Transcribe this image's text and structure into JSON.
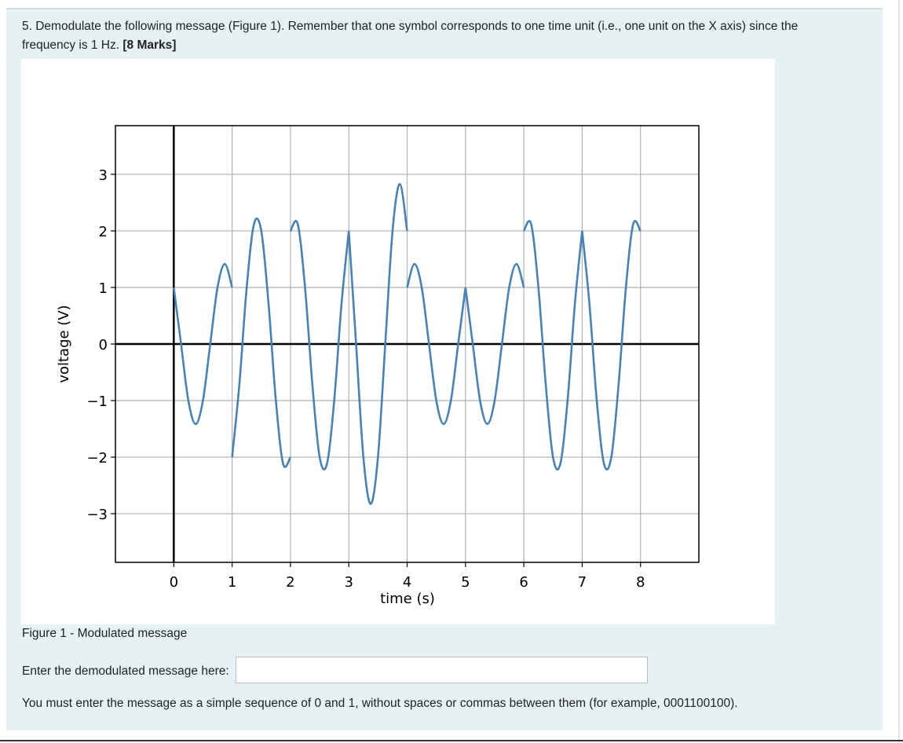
{
  "question": {
    "text": "5. Demodulate the following message (Figure 1). Remember that one symbol corresponds to one time unit (i.e., one unit on the X axis) since the frequency is 1 Hz.",
    "marks": "[8 Marks]"
  },
  "caption": "Figure 1 - Modulated message",
  "answer_label": "Enter the demodulated message here:",
  "note": "You must enter the message as a simple sequence of 0 and 1, without spaces or commas between them (for example, 0001100100).",
  "chart_data": {
    "type": "line",
    "x_label": "time (s)",
    "y_label": "voltage (V)",
    "xlim": [
      -1,
      9
    ],
    "ylim": [
      -3.86,
      3.86
    ],
    "xticks": [
      0,
      1,
      2,
      3,
      4,
      5,
      6,
      7,
      8
    ],
    "yticks": [
      {
        "value": -3,
        "label": "−3"
      },
      {
        "value": -2,
        "label": "−2"
      },
      {
        "value": -1,
        "label": "−1"
      },
      0,
      1,
      2,
      3
    ],
    "grid": true,
    "zero_lines": true,
    "x": [
      0,
      0.125,
      0.25,
      0.375,
      0.5,
      0.625,
      0.75,
      0.875,
      1,
      null,
      1,
      1.125,
      1.25,
      1.375,
      1.5,
      1.625,
      1.75,
      1.875,
      2,
      null,
      2,
      2.125,
      2.25,
      2.375,
      2.5,
      2.625,
      2.75,
      2.875,
      3,
      null,
      3,
      3.125,
      3.25,
      3.375,
      3.5,
      3.625,
      3.75,
      3.875,
      4,
      null,
      4,
      4.125,
      4.25,
      4.375,
      4.5,
      4.625,
      4.75,
      4.875,
      5,
      null,
      5,
      5.125,
      5.25,
      5.375,
      5.5,
      5.625,
      5.75,
      5.875,
      6,
      null,
      6,
      6.125,
      6.25,
      6.375,
      6.5,
      6.625,
      6.75,
      6.875,
      7,
      null,
      7,
      7.125,
      7.25,
      7.375,
      7.5,
      7.625,
      7.75,
      7.875,
      8
    ],
    "series": [
      {
        "color": "#4682b4",
        "values": [
          1,
          0,
          -1,
          -1.414,
          -1,
          0,
          1,
          1.414,
          1,
          null,
          -2,
          -0.707,
          1,
          2.121,
          2,
          0.707,
          -1,
          -2.121,
          -2,
          null,
          2,
          2.121,
          1,
          -0.707,
          -2,
          -2.121,
          -1,
          0.707,
          2,
          null,
          2,
          0,
          -2,
          -2.828,
          -2,
          0,
          2,
          2.828,
          2,
          null,
          1,
          1.414,
          1,
          0,
          -1,
          -1.414,
          -1,
          0,
          1,
          null,
          1,
          0,
          -1,
          -1.414,
          -1,
          0,
          1,
          1.414,
          1,
          null,
          2,
          2.121,
          1,
          -0.707,
          -2,
          -2.121,
          -1,
          0.707,
          2,
          null,
          2,
          0.707,
          -1,
          -2.121,
          -2,
          -0.707,
          1,
          2.121,
          2
        ]
      }
    ]
  }
}
